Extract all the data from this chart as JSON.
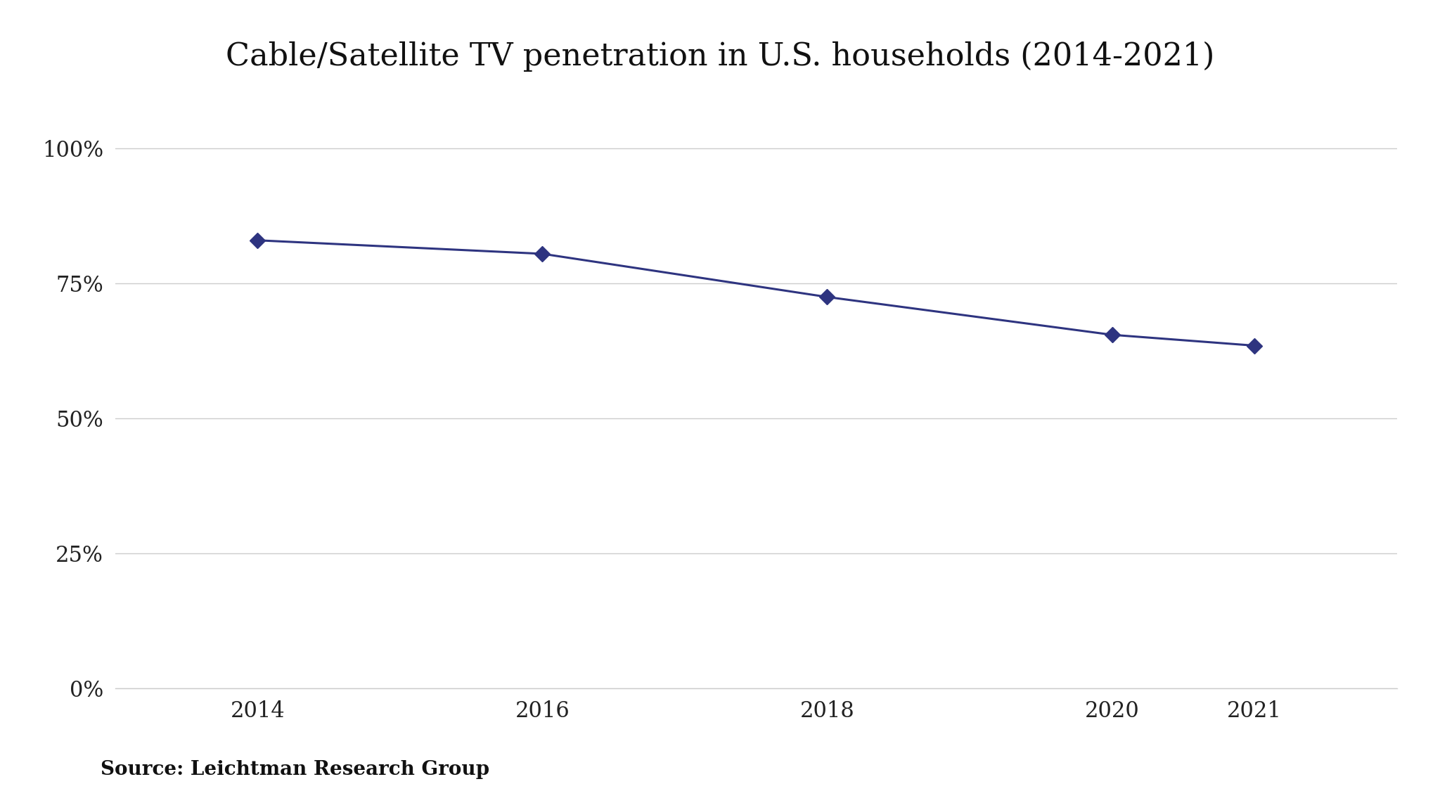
{
  "title": "Cable/Satellite TV penetration in U.S. households (2014-2021)",
  "x_values": [
    2014,
    2016,
    2018,
    2020,
    2021
  ],
  "y_values": [
    0.83,
    0.805,
    0.725,
    0.655,
    0.635
  ],
  "line_color": "#2E3480",
  "marker": "D",
  "marker_size": 11,
  "marker_facecolor": "#2E3480",
  "line_width": 2.2,
  "yticks": [
    0.0,
    0.25,
    0.5,
    0.75,
    1.0
  ],
  "ytick_labels": [
    "0%",
    "25%",
    "50%",
    "75%",
    "100%"
  ],
  "xtick_labels": [
    "2014",
    "2016",
    "2018",
    "2020",
    "2021"
  ],
  "ylim": [
    0,
    1.05
  ],
  "xlim": [
    2013.0,
    2022.0
  ],
  "source_text": "Source: Leichtman Research Group",
  "background_color": "#ffffff",
  "grid_color": "#cccccc",
  "title_fontsize": 32,
  "tick_fontsize": 22,
  "source_fontsize": 20
}
